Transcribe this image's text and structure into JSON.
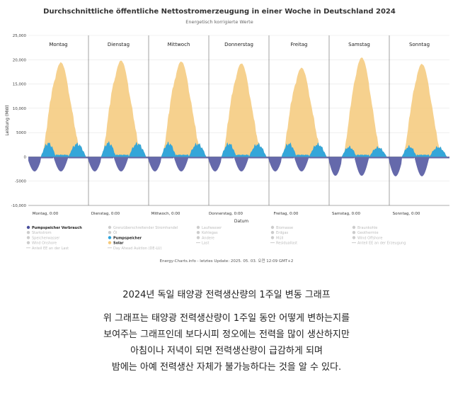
{
  "chart_data": {
    "type": "area",
    "title": "Durchschnittliche öffentliche Nettostromerzeugung in einer Woche in Deutschland 2024",
    "subtitle": "Energetisch korrigierte Werte",
    "ylabel": "Leistung (MW)",
    "xlabel": "Datum",
    "ylim": [
      -10000,
      25000
    ],
    "yticks": [
      "-10,000",
      "-5000",
      "0",
      "5000",
      "10,000",
      "15,000",
      "20,000",
      "25,000"
    ],
    "ytick_values": [
      -10000,
      -5000,
      0,
      5000,
      10000,
      15000,
      20000,
      25000
    ],
    "days": [
      "Montag",
      "Dienstag",
      "Mittwoch",
      "Donnerstag",
      "Freitag",
      "Samstag",
      "Sonntag"
    ],
    "xticks": [
      "Montag, 0:00",
      "Dienstag, 0:00",
      "Mittwoch, 0:00",
      "Donnerstag, 0:00",
      "Freitag, 0:00",
      "Samstag, 0:00",
      "Sonntag, 0:00"
    ],
    "series": [
      {
        "name": "Solar",
        "color": "#f5c97a",
        "unit": "MW",
        "daily_peak": [
          19000,
          19400,
          19200,
          18800,
          17900,
          20000,
          18700
        ]
      },
      {
        "name": "Pumpspeicher",
        "color": "#29a3dd",
        "unit": "MW",
        "daily_peak": [
          3300,
          3400,
          3300,
          3200,
          3200,
          2400,
          2500
        ]
      },
      {
        "name": "Pumpspeicher Verbrauch",
        "color": "#4a4f9c",
        "unit": "MW",
        "daily_min": [
          -3000,
          -3000,
          -3000,
          -3000,
          -3000,
          -3900,
          -4000
        ]
      }
    ],
    "grid": true,
    "legend_position": "bottom"
  },
  "legend": {
    "columns": [
      [
        {
          "label": "Pumpspeicher Verbrauch",
          "active": true,
          "color": "#4a4f9c",
          "mark": "dot"
        },
        {
          "label": "Starkstrom",
          "active": false,
          "color": "#cccccc",
          "mark": "dot"
        },
        {
          "label": "Speicherwasser",
          "active": false,
          "color": "#cccccc",
          "mark": "dot"
        },
        {
          "label": "Wind Onshore",
          "active": false,
          "color": "#cccccc",
          "mark": "dot"
        },
        {
          "label": "Anteil EE an der Last",
          "active": false,
          "color": "#cccccc",
          "mark": "line"
        }
      ],
      [
        {
          "label": "Grenzüberschreitender Stromhandel",
          "active": false,
          "color": "#cccccc",
          "mark": "dot"
        },
        {
          "label": "Öl",
          "active": false,
          "color": "#cccccc",
          "mark": "dot"
        },
        {
          "label": "Pumpspeicher",
          "active": true,
          "color": "#29a3dd",
          "mark": "dot"
        },
        {
          "label": "Solar",
          "active": true,
          "color": "#f5c97a",
          "mark": "dot"
        },
        {
          "label": "Day Ahead Auktion (DE-LU)",
          "active": false,
          "color": "#cccccc",
          "mark": "line"
        }
      ],
      [
        {
          "label": "Laufwasser",
          "active": false,
          "color": "#cccccc",
          "mark": "dot"
        },
        {
          "label": "Kohlegas",
          "active": false,
          "color": "#cccccc",
          "mark": "dot"
        },
        {
          "label": "Andere",
          "active": false,
          "color": "#cccccc",
          "mark": "dot"
        },
        {
          "label": "Last",
          "active": false,
          "color": "#cccccc",
          "mark": "line"
        }
      ],
      [
        {
          "label": "Biomasse",
          "active": false,
          "color": "#cccccc",
          "mark": "dot"
        },
        {
          "label": "Erdgas",
          "active": false,
          "color": "#cccccc",
          "mark": "dot"
        },
        {
          "label": "Müll",
          "active": false,
          "color": "#cccccc",
          "mark": "dot"
        },
        {
          "label": "Residuallast",
          "active": false,
          "color": "#cccccc",
          "mark": "line"
        }
      ],
      [
        {
          "label": "Braunkohle",
          "active": false,
          "color": "#cccccc",
          "mark": "dot"
        },
        {
          "label": "Geothermie",
          "active": false,
          "color": "#cccccc",
          "mark": "dot"
        },
        {
          "label": "Wind Offshore",
          "active": false,
          "color": "#cccccc",
          "mark": "dot"
        },
        {
          "label": "Anteil EE an der Erzeugung",
          "active": false,
          "color": "#cccccc",
          "mark": "line"
        }
      ]
    ]
  },
  "credit": "Energy-Charts.info - letztes Update: 2025. 05. 03. 오전 12:09 GMT+2",
  "korean": {
    "title": "2024년 독일 태양광 전력생산량의 1주일 변동 그래프",
    "lines": [
      "위 그래프는 태양광 전력생산량이 1주일 동안 어떻게 변하는지를",
      "보여주는 그래프인데 보다시피 정오에는 전력을 많이 생산하지만",
      "아침이나 저녁이 되면 전력생산량이 급감하게 되며",
      "밤에는 아예 전력생산 자체가 불가능하다는 것을 알 수 있다."
    ]
  }
}
